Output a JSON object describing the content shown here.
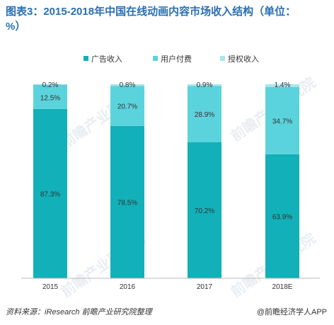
{
  "title": "图表3：2015-2018年中国在线动画内容市场收入结构（单位：%）",
  "source": "资料来源：iResearch  前瞻产业研究院整理",
  "brand": "@前瞻经济学人APP",
  "watermark": "前瞻产业研究院",
  "chart_data": {
    "type": "bar",
    "stacked": true,
    "categories": [
      "2015",
      "2016",
      "2017",
      "2018E"
    ],
    "series": [
      {
        "name": "广告收入",
        "values": [
          87.3,
          78.5,
          70.2,
          63.9
        ],
        "labels": [
          "87.3%",
          "78.5%",
          "70.2%",
          "63.9%"
        ],
        "color": "#12b0b8"
      },
      {
        "name": "用户付费",
        "values": [
          12.5,
          20.7,
          28.9,
          34.7
        ],
        "labels": [
          "12.5%",
          "20.7%",
          "28.9%",
          "34.7%"
        ],
        "color": "#5bd3dc"
      },
      {
        "name": "授权收入",
        "values": [
          0.2,
          0.8,
          0.9,
          1.4
        ],
        "labels": [
          "0.2%",
          "0.8%",
          "0.9%",
          "1.4%"
        ],
        "color": "#a6e6ec"
      }
    ],
    "ylim": [
      0,
      100
    ],
    "legend": "top",
    "grid": false
  }
}
